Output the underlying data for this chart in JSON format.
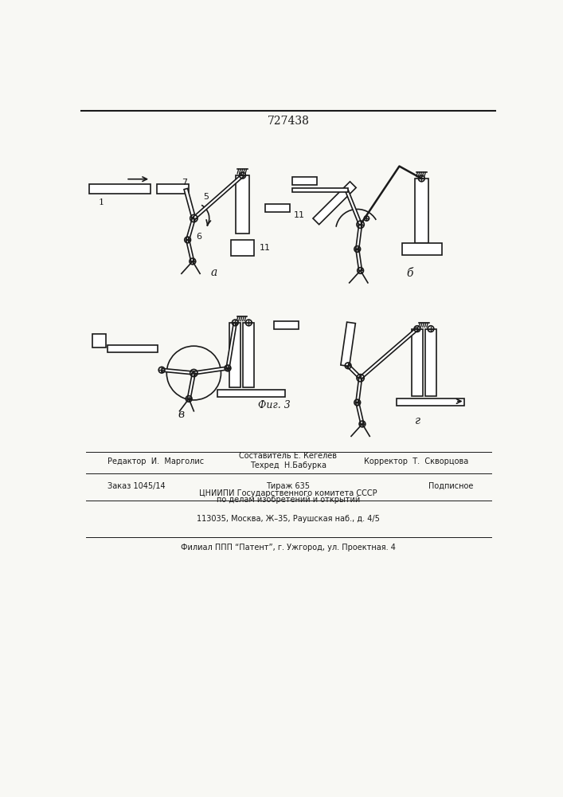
{
  "title": "727438",
  "bg_color": "#f8f8f4",
  "line_color": "#1a1a1a",
  "label_a": "a",
  "label_b": "б",
  "label_v": "в",
  "label_g": "г",
  "editor": "Редактор  И.  Марголис",
  "composer": "Составитель Е. Кегелев",
  "techred": "Техред  Н.Бабурка",
  "corrector": "Корректор  Т.  Скворцова",
  "order": "Заказ 1045/14",
  "tirazh": "Тираж 635",
  "podpisnoe": "Подписное",
  "cniipи": "ЦНИИПИ Государственного комитета СССР",
  "po_delam": "по делам изобретений и открытий",
  "address": "113035, Москва, Ж–35, Раушская наб., д. 4/5",
  "filial": "Филиал ППП “Патент”, г. Ужгород, ул. Проектная. 4"
}
